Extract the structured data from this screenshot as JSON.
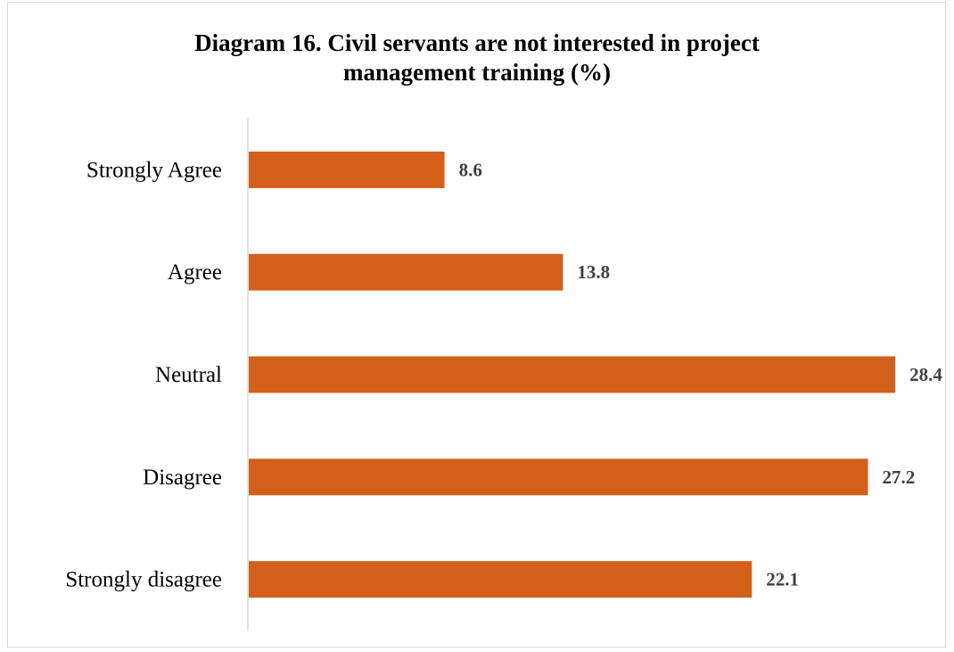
{
  "chart_data": {
    "type": "bar",
    "orientation": "horizontal",
    "title": "Diagram 16. Civil servants are not interested in project\nmanagement training (%)",
    "xlabel": "",
    "ylabel": "",
    "categories": [
      "Strongly Agree",
      "Agree",
      "Neutral",
      "Disagree",
      "Strongly disagree"
    ],
    "values": [
      8.6,
      13.8,
      28.4,
      27.2,
      22.1
    ],
    "value_labels": [
      "8.6",
      "13.8",
      "28.4",
      "27.2",
      "22.1"
    ],
    "xlim": [
      0,
      30
    ],
    "grid": false,
    "legend": "none",
    "bar_color": "#d2601a",
    "axis_color": "#d9d9d9"
  }
}
